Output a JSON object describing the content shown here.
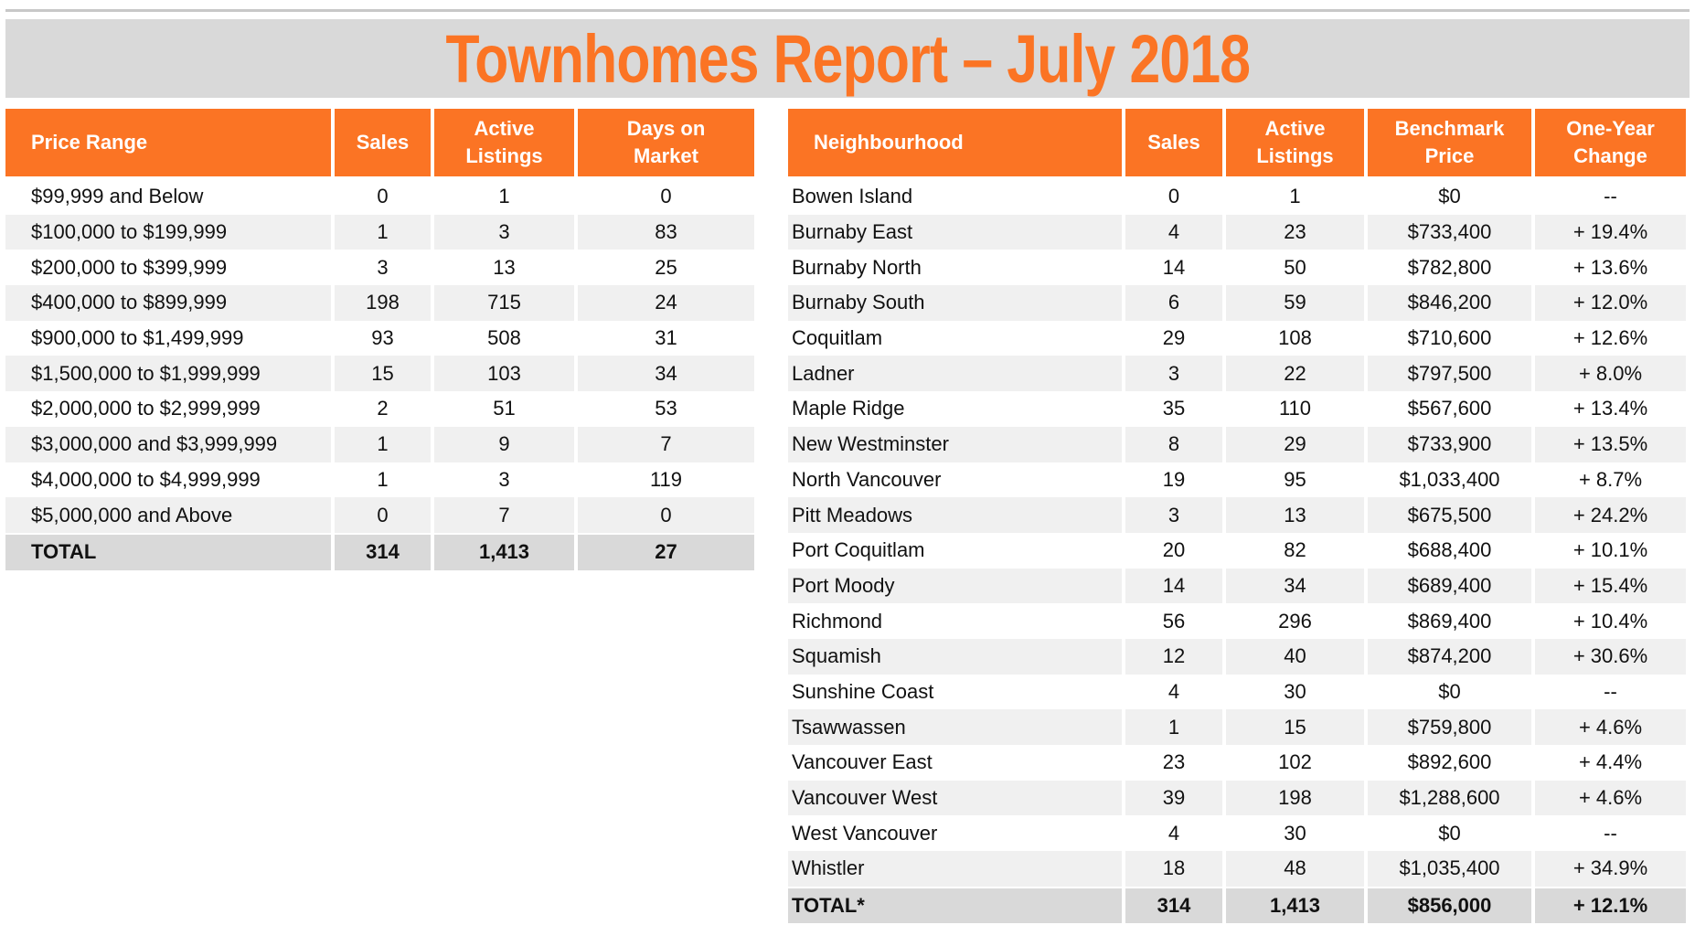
{
  "title": "Townhomes Report – July 2018",
  "colors": {
    "accent": "#fb7424",
    "band": "#d9d9d9",
    "stripe": "#f0f0f0"
  },
  "price_table": {
    "headers": [
      "Price Range",
      "Sales",
      "Active\nListings",
      "Days on\nMarket"
    ],
    "rows": [
      [
        "$99,999 and Below",
        "0",
        "1",
        "0"
      ],
      [
        "$100,000 to $199,999",
        "1",
        "3",
        "83"
      ],
      [
        "$200,000 to $399,999",
        "3",
        "13",
        "25"
      ],
      [
        "$400,000 to $899,999",
        "198",
        "715",
        "24"
      ],
      [
        "$900,000 to $1,499,999",
        "93",
        "508",
        "31"
      ],
      [
        "$1,500,000 to $1,999,999",
        "15",
        "103",
        "34"
      ],
      [
        "$2,000,000 to $2,999,999",
        "2",
        "51",
        "53"
      ],
      [
        "$3,000,000 and $3,999,999",
        "1",
        "9",
        "7"
      ],
      [
        "$4,000,000 to $4,999,999",
        "1",
        "3",
        "119"
      ],
      [
        "$5,000,000 and Above",
        "0",
        "7",
        "0"
      ]
    ],
    "total": [
      "TOTAL",
      "314",
      "1,413",
      "27"
    ]
  },
  "neighbourhood_table": {
    "headers": [
      "Neighbourhood",
      "Sales",
      "Active\nListings",
      "Benchmark\nPrice",
      "One-Year\nChange"
    ],
    "rows": [
      [
        "Bowen Island",
        "0",
        "1",
        "$0",
        "--"
      ],
      [
        "Burnaby East",
        "4",
        "23",
        "$733,400",
        "+ 19.4%"
      ],
      [
        "Burnaby North",
        "14",
        "50",
        "$782,800",
        "+ 13.6%"
      ],
      [
        "Burnaby South",
        "6",
        "59",
        "$846,200",
        "+ 12.0%"
      ],
      [
        "Coquitlam",
        "29",
        "108",
        "$710,600",
        "+ 12.6%"
      ],
      [
        "Ladner",
        "3",
        "22",
        "$797,500",
        "+ 8.0%"
      ],
      [
        "Maple Ridge",
        "35",
        "110",
        "$567,600",
        "+ 13.4%"
      ],
      [
        "New Westminster",
        "8",
        "29",
        "$733,900",
        "+ 13.5%"
      ],
      [
        "North Vancouver",
        "19",
        "95",
        "$1,033,400",
        "+ 8.7%"
      ],
      [
        "Pitt Meadows",
        "3",
        "13",
        "$675,500",
        "+ 24.2%"
      ],
      [
        "Port Coquitlam",
        "20",
        "82",
        "$688,400",
        "+ 10.1%"
      ],
      [
        "Port Moody",
        "14",
        "34",
        "$689,400",
        "+ 15.4%"
      ],
      [
        "Richmond",
        "56",
        "296",
        "$869,400",
        "+ 10.4%"
      ],
      [
        "Squamish",
        "12",
        "40",
        "$874,200",
        "+ 30.6%"
      ],
      [
        "Sunshine Coast",
        "4",
        "30",
        "$0",
        "--"
      ],
      [
        "Tsawwassen",
        "1",
        "15",
        "$759,800",
        "+ 4.6%"
      ],
      [
        "Vancouver East",
        "23",
        "102",
        "$892,600",
        "+ 4.4%"
      ],
      [
        "Vancouver West",
        "39",
        "198",
        "$1,288,600",
        "+ 4.6%"
      ],
      [
        "West Vancouver",
        "4",
        "30",
        "$0",
        "--"
      ],
      [
        "Whistler",
        "18",
        "48",
        "$1,035,400",
        "+ 34.9%"
      ]
    ],
    "total": [
      "TOTAL*",
      "314",
      "1,413",
      "$856,000",
      "+ 12.1%"
    ]
  }
}
